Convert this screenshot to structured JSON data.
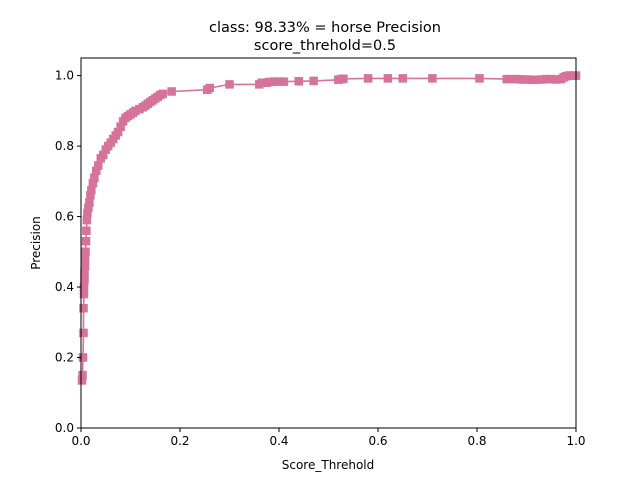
{
  "chart_data": {
    "type": "line",
    "title": "class: 98.33% = horse Precision",
    "subtitle": "score_threhold=0.5",
    "xlabel": "Score_Threhold",
    "ylabel": "Precision",
    "xlim": [
      0.0,
      1.0
    ],
    "ylim": [
      0.0,
      1.05
    ],
    "xticks": [
      "0.0",
      "0.2",
      "0.4",
      "0.6",
      "0.8",
      "1.0"
    ],
    "yticks": [
      "0.0",
      "0.2",
      "0.4",
      "0.6",
      "0.8",
      "1.0"
    ],
    "grid": false,
    "legend": "none",
    "marker": "square",
    "color": "#d6739a",
    "series": [
      {
        "x": [
          0.002,
          0.003,
          0.004,
          0.005,
          0.005,
          0.006,
          0.006,
          0.007,
          0.007,
          0.008,
          0.008,
          0.009,
          0.01,
          0.011,
          0.012,
          0.013,
          0.015,
          0.017,
          0.019,
          0.021,
          0.024,
          0.027,
          0.031,
          0.035,
          0.04,
          0.045,
          0.05,
          0.055,
          0.06,
          0.065,
          0.07,
          0.075,
          0.08,
          0.085,
          0.09,
          0.095,
          0.1,
          0.105,
          0.11,
          0.118,
          0.125,
          0.13,
          0.135,
          0.14,
          0.145,
          0.15,
          0.155,
          0.16,
          0.165,
          0.183,
          0.255,
          0.26,
          0.3,
          0.36,
          0.365,
          0.375,
          0.38,
          0.39,
          0.4,
          0.41,
          0.44,
          0.47,
          0.52,
          0.525,
          0.53,
          0.58,
          0.62,
          0.65,
          0.71,
          0.805,
          0.86,
          0.87,
          0.88,
          0.89,
          0.9,
          0.91,
          0.92,
          0.93,
          0.94,
          0.95,
          0.96,
          0.97,
          0.975,
          0.98,
          0.985,
          0.99,
          0.995,
          1.0
        ],
        "values": [
          0.135,
          0.15,
          0.2,
          0.27,
          0.34,
          0.38,
          0.4,
          0.42,
          0.44,
          0.46,
          0.48,
          0.5,
          0.53,
          0.56,
          0.59,
          0.61,
          0.625,
          0.64,
          0.66,
          0.675,
          0.695,
          0.71,
          0.73,
          0.745,
          0.765,
          0.775,
          0.79,
          0.8,
          0.81,
          0.82,
          0.83,
          0.84,
          0.855,
          0.87,
          0.88,
          0.885,
          0.89,
          0.895,
          0.9,
          0.905,
          0.91,
          0.915,
          0.92,
          0.925,
          0.93,
          0.935,
          0.94,
          0.945,
          0.948,
          0.955,
          0.96,
          0.965,
          0.975,
          0.975,
          0.98,
          0.98,
          0.982,
          0.983,
          0.983,
          0.983,
          0.984,
          0.985,
          0.988,
          0.99,
          0.991,
          0.992,
          0.992,
          0.992,
          0.992,
          0.992,
          0.99,
          0.99,
          0.99,
          0.989,
          0.989,
          0.988,
          0.988,
          0.989,
          0.99,
          0.99,
          0.989,
          0.99,
          0.995,
          0.998,
          1.0,
          1.0,
          1.0,
          1.0
        ]
      }
    ]
  }
}
